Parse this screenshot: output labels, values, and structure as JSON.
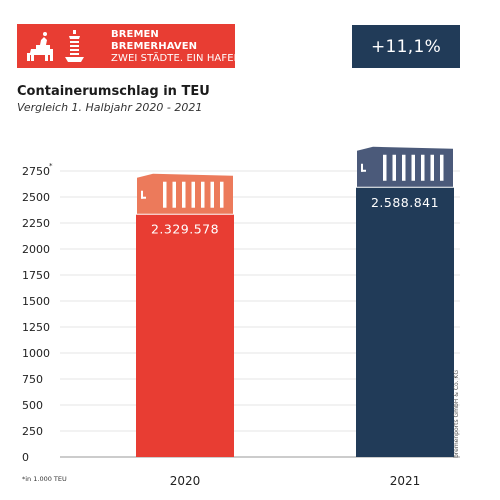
{
  "header": {
    "logo_line1": "BREMEN",
    "logo_line2": "BREMERHAVEN",
    "logo_line3": "ZWEI STÄDTE. EIN HAFEN.",
    "growth_badge": "+11,1%",
    "title": "Containerumschlag in TEU",
    "subtitle": "Vergleich 1. Halbjahr 2020 - 2021"
  },
  "footnote": "*in 1.000 TEU",
  "credit": "bremenports GmbH & Co. KG",
  "colors": {
    "red": "#e83d33",
    "navy": "#213b58",
    "container_red": "#ec7a5b",
    "container_navy": "#4b5a7a"
  },
  "icons": [
    "bremen-town-musicians-icon",
    "lighthouse-icon",
    "container-icon"
  ],
  "chart_data": {
    "type": "bar",
    "categories": [
      "2020",
      "2021"
    ],
    "values": [
      2329.578,
      2588.841
    ],
    "data_labels": [
      "2.329.578",
      "2.588.841"
    ],
    "ylabel_marker": "*",
    "ylim": [
      0,
      2750
    ],
    "yticks": [
      "0",
      "250",
      "500",
      "750",
      "1000",
      "1250",
      "1500",
      "1750",
      "2000",
      "2250",
      "2500",
      "2750"
    ],
    "ytick_values": [
      0,
      250,
      500,
      750,
      1000,
      1250,
      1500,
      1750,
      2000,
      2250,
      2500,
      2750
    ],
    "grid": true,
    "bar_colors": [
      "#e83d33",
      "#213b58"
    ]
  }
}
